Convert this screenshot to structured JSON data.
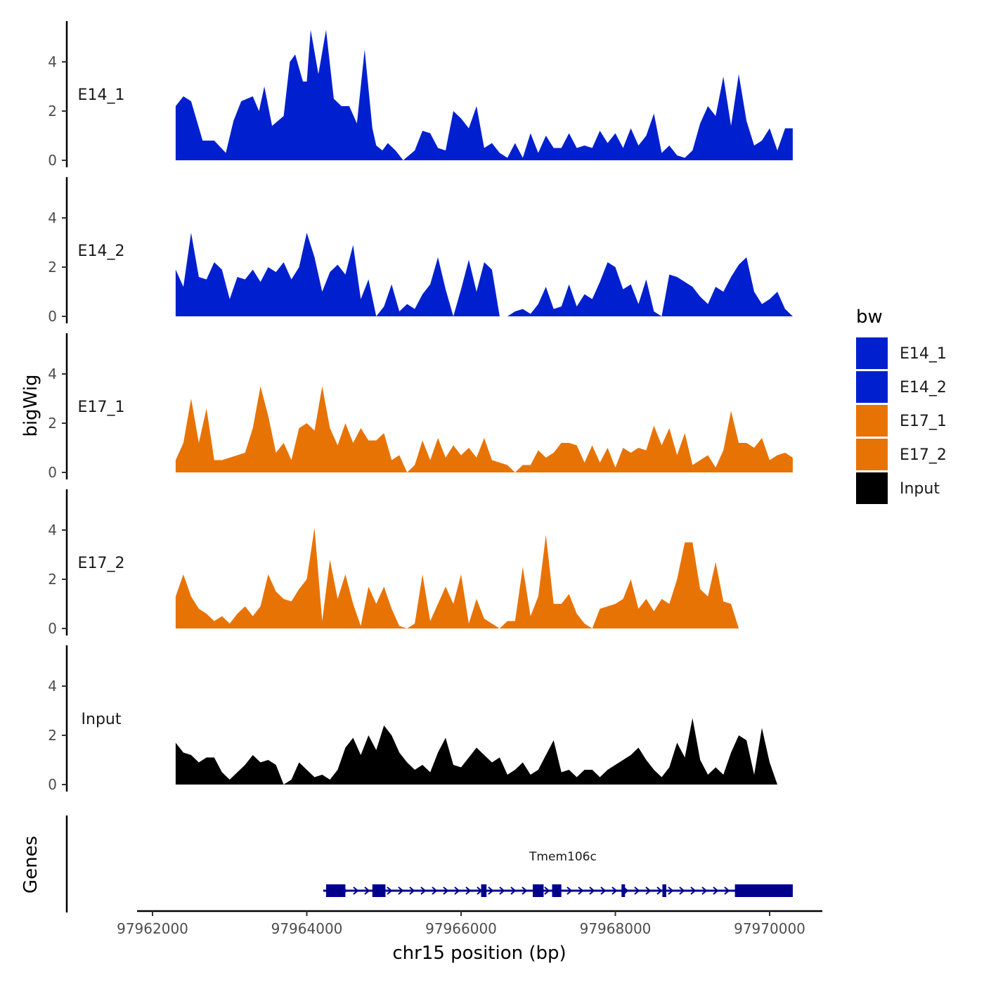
{
  "chart_data": {
    "type": "area",
    "title": "",
    "xlabel": "chr15 position (bp)",
    "ylabel": "bigWig",
    "genes_axis_label": "Genes",
    "xlim": [
      97961800,
      97970700
    ],
    "ylim": [
      0,
      5.5
    ],
    "x_ticks": [
      97962000,
      97964000,
      97966000,
      97968000,
      97970000
    ],
    "x_tick_labels": [
      "97962000",
      "97964000",
      "97966000",
      "97968000",
      "97970000"
    ],
    "y_ticks": [
      0,
      2,
      4
    ],
    "y_tick_labels": [
      "0",
      "2",
      "4"
    ],
    "legend": {
      "title": "bw",
      "entries": [
        {
          "label": "E14_1",
          "color": "#0020CF"
        },
        {
          "label": "E14_2",
          "color": "#0020CF"
        },
        {
          "label": "E17_1",
          "color": "#E87305"
        },
        {
          "label": "E17_2",
          "color": "#E87305"
        },
        {
          "label": "Input",
          "color": "#000000"
        }
      ]
    },
    "series": [
      {
        "name": "E14_1",
        "color": "#0020CF",
        "x": [
          97962300,
          97962400,
          97962500,
          97962650,
          97962800,
          97962950,
          97963050,
          97963150,
          97963300,
          97963380,
          97963450,
          97963550,
          97963700,
          97963780,
          97963850,
          97963950,
          97964000,
          97964050,
          97964150,
          97964250,
          97964350,
          97964450,
          97964550,
          97964650,
          97964750,
          97964850,
          97964900,
          97964980,
          97965050,
          97965150,
          97965250,
          97965400,
          97965500,
          97965600,
          97965700,
          97965800,
          97965900,
          97966000,
          97966100,
          97966200,
          97966300,
          97966400,
          97966500,
          97966600,
          97966700,
          97966800,
          97966900,
          97967000,
          97967100,
          97967200,
          97967300,
          97967400,
          97967500,
          97967600,
          97967700,
          97967800,
          97967900,
          97968000,
          97968100,
          97968200,
          97968300,
          97968400,
          97968500,
          97968600,
          97968700,
          97968800,
          97968900,
          97969000,
          97969100,
          97969200,
          97969300,
          97969400,
          97969500,
          97969600,
          97969700,
          97969800,
          97969900,
          97970000,
          97970100,
          97970200,
          97970300
        ],
        "values": [
          2.2,
          2.6,
          2.4,
          0.8,
          0.8,
          0.3,
          1.6,
          2.4,
          2.6,
          2.0,
          3.0,
          1.4,
          1.8,
          4.0,
          4.3,
          3.2,
          3.2,
          5.3,
          3.5,
          5.3,
          2.5,
          2.2,
          2.2,
          1.5,
          4.5,
          1.3,
          0.6,
          0.4,
          0.7,
          0.4,
          0.0,
          0.4,
          1.2,
          1.1,
          0.5,
          0.4,
          2.0,
          1.7,
          1.3,
          2.2,
          0.5,
          0.7,
          0.3,
          0.1,
          0.7,
          0.1,
          1.1,
          0.3,
          1.0,
          0.5,
          0.5,
          1.1,
          0.5,
          0.6,
          0.5,
          1.2,
          0.7,
          1.1,
          0.5,
          1.3,
          0.6,
          1.0,
          1.9,
          0.3,
          0.6,
          0.2,
          0.1,
          0.4,
          1.5,
          2.2,
          1.8,
          3.4,
          1.4,
          3.5,
          1.6,
          0.6,
          0.8,
          1.3,
          0.4,
          1.3,
          1.3
        ]
      },
      {
        "name": "E14_2",
        "color": "#0020CF",
        "x": [
          97962300,
          97962400,
          97962500,
          97962600,
          97962700,
          97962800,
          97962900,
          97963000,
          97963100,
          97963200,
          97963300,
          97963400,
          97963500,
          97963600,
          97963700,
          97963800,
          97963900,
          97964000,
          97964100,
          97964200,
          97964300,
          97964400,
          97964500,
          97964600,
          97964700,
          97964800,
          97964900,
          97965000,
          97965100,
          97965200,
          97965300,
          97965400,
          97965500,
          97965600,
          97965700,
          97965800,
          97965900,
          97966000,
          97966100,
          97966200,
          97966300,
          97966400,
          97966500,
          97966600,
          97966700,
          97966800,
          97966900,
          97967000,
          97967100,
          97967200,
          97967300,
          97967400,
          97967500,
          97967600,
          97967700,
          97967800,
          97967900,
          97968000,
          97968100,
          97968200,
          97968300,
          97968400,
          97968500,
          97968600,
          97968700,
          97968800,
          97968900,
          97969000,
          97969100,
          97969200,
          97969300,
          97969400,
          97969500,
          97969600,
          97969700,
          97969800,
          97969900,
          97970000,
          97970100,
          97970200,
          97970300
        ],
        "values": [
          1.9,
          1.2,
          3.4,
          1.6,
          1.5,
          2.2,
          1.9,
          0.7,
          1.6,
          1.5,
          1.9,
          1.4,
          2.0,
          1.8,
          2.2,
          1.5,
          2.0,
          3.4,
          2.4,
          1.0,
          1.8,
          2.1,
          1.7,
          2.9,
          0.7,
          1.5,
          0.0,
          0.4,
          1.3,
          0.2,
          0.5,
          0.3,
          0.9,
          1.3,
          2.4,
          1.1,
          0.0,
          1.1,
          2.3,
          1.0,
          2.2,
          1.9,
          0.0,
          0.0,
          0.2,
          0.3,
          0.1,
          0.5,
          1.2,
          0.3,
          0.4,
          1.3,
          0.4,
          0.9,
          0.7,
          1.4,
          2.2,
          2.0,
          1.1,
          1.3,
          0.5,
          1.5,
          0.2,
          0.0,
          1.7,
          1.6,
          1.4,
          1.2,
          0.8,
          0.5,
          1.2,
          1.0,
          1.6,
          2.1,
          2.4,
          1.0,
          0.5,
          0.7,
          1.0,
          0.3,
          0.0
        ]
      },
      {
        "name": "E17_1",
        "color": "#E87305",
        "x": [
          97962300,
          97962400,
          97962500,
          97962600,
          97962700,
          97962800,
          97962900,
          97963000,
          97963100,
          97963200,
          97963300,
          97963400,
          97963500,
          97963600,
          97963700,
          97963800,
          97963900,
          97964000,
          97964100,
          97964200,
          97964300,
          97964400,
          97964500,
          97964600,
          97964700,
          97964800,
          97964900,
          97965000,
          97965100,
          97965200,
          97965300,
          97965400,
          97965500,
          97965600,
          97965700,
          97965800,
          97965900,
          97966000,
          97966100,
          97966200,
          97966300,
          97966400,
          97966500,
          97966600,
          97966700,
          97966800,
          97966900,
          97967000,
          97967100,
          97967200,
          97967300,
          97967400,
          97967500,
          97967600,
          97967700,
          97967800,
          97967900,
          97968000,
          97968100,
          97968200,
          97968300,
          97968400,
          97968500,
          97968600,
          97968700,
          97968800,
          97968900,
          97969000,
          97969100,
          97969200,
          97969300,
          97969400,
          97969500,
          97969600,
          97969700,
          97969800,
          97969900,
          97970000,
          97970100,
          97970200,
          97970300
        ],
        "values": [
          0.5,
          1.2,
          3.0,
          1.2,
          2.6,
          0.5,
          0.5,
          0.6,
          0.7,
          0.8,
          1.8,
          3.5,
          2.3,
          0.8,
          1.2,
          0.5,
          1.8,
          2.0,
          1.7,
          3.5,
          1.8,
          1.1,
          2.0,
          1.2,
          1.8,
          1.3,
          1.3,
          1.6,
          0.5,
          0.7,
          0.0,
          0.3,
          1.3,
          0.5,
          1.4,
          0.6,
          1.1,
          0.7,
          1.0,
          0.6,
          1.4,
          0.5,
          0.4,
          0.3,
          0.0,
          0.3,
          0.3,
          0.9,
          0.6,
          0.8,
          1.2,
          1.2,
          1.1,
          0.4,
          1.1,
          0.4,
          1.0,
          0.2,
          1.0,
          0.8,
          1.0,
          0.9,
          1.9,
          1.1,
          1.8,
          0.7,
          1.6,
          0.3,
          0.5,
          0.7,
          0.2,
          0.9,
          2.5,
          1.2,
          1.2,
          1.0,
          1.4,
          0.5,
          0.7,
          0.8,
          0.6
        ]
      },
      {
        "name": "E17_2",
        "color": "#E87305",
        "x": [
          97962300,
          97962400,
          97962500,
          97962600,
          97962700,
          97962800,
          97962900,
          97963000,
          97963100,
          97963200,
          97963300,
          97963400,
          97963500,
          97963600,
          97963700,
          97963800,
          97963900,
          97964000,
          97964100,
          97964200,
          97964300,
          97964400,
          97964500,
          97964600,
          97964700,
          97964800,
          97964900,
          97965000,
          97965100,
          97965200,
          97965300,
          97965400,
          97965500,
          97965600,
          97965700,
          97965800,
          97965900,
          97966000,
          97966100,
          97966200,
          97966300,
          97966400,
          97966500,
          97966600,
          97966700,
          97966800,
          97966900,
          97967000,
          97967100,
          97967200,
          97967300,
          97967400,
          97967500,
          97967600,
          97967700,
          97967800,
          97967900,
          97968000,
          97968100,
          97968200,
          97968300,
          97968400,
          97968500,
          97968600,
          97968700,
          97968800,
          97968900,
          97969000,
          97969100,
          97969200,
          97969300,
          97969400,
          97969500,
          97969600,
          97969700,
          97969800,
          97969900,
          97970000,
          97970100,
          97970200,
          97970300
        ],
        "values": [
          1.3,
          2.2,
          1.3,
          0.8,
          0.6,
          0.3,
          0.5,
          0.2,
          0.6,
          0.9,
          0.5,
          0.9,
          2.2,
          1.5,
          1.2,
          1.1,
          1.6,
          2.0,
          4.1,
          0.3,
          2.8,
          1.2,
          2.2,
          1.0,
          0.1,
          1.7,
          1.0,
          1.7,
          0.8,
          0.1,
          0.0,
          0.2,
          2.2,
          0.3,
          1.0,
          1.7,
          1.0,
          2.2,
          0.2,
          1.2,
          0.4,
          0.2,
          0.0,
          0.3,
          0.3,
          2.5,
          0.5,
          1.3,
          3.8,
          1.0,
          1.0,
          1.4,
          0.6,
          0.2,
          0.0,
          0.8,
          0.9,
          1.0,
          1.2,
          2.0,
          0.8,
          1.2,
          0.7,
          1.2,
          1.0,
          2.0,
          3.5,
          3.5,
          1.6,
          1.3,
          2.7,
          1.1,
          1.0,
          0.0,
          0.0,
          0.0,
          0.0,
          0.0,
          0.0,
          0.0,
          0.0
        ]
      },
      {
        "name": "Input",
        "color": "#000000",
        "x": [
          97962300,
          97962400,
          97962500,
          97962600,
          97962700,
          97962800,
          97962900,
          97963000,
          97963100,
          97963200,
          97963300,
          97963400,
          97963500,
          97963600,
          97963700,
          97963800,
          97963900,
          97964000,
          97964100,
          97964200,
          97964300,
          97964400,
          97964500,
          97964600,
          97964700,
          97964800,
          97964900,
          97965000,
          97965100,
          97965200,
          97965300,
          97965400,
          97965500,
          97965600,
          97965700,
          97965800,
          97965900,
          97966000,
          97966100,
          97966200,
          97966300,
          97966400,
          97966500,
          97966600,
          97966700,
          97966800,
          97966900,
          97967000,
          97967100,
          97967200,
          97967300,
          97967400,
          97967500,
          97967600,
          97967700,
          97967800,
          97967900,
          97968000,
          97968100,
          97968200,
          97968300,
          97968400,
          97968500,
          97968600,
          97968700,
          97968800,
          97968900,
          97969000,
          97969100,
          97969200,
          97969300,
          97969400,
          97969500,
          97969600,
          97969700,
          97969800,
          97969900,
          97970000,
          97970100,
          97970200,
          97970300
        ],
        "values": [
          1.7,
          1.3,
          1.2,
          0.9,
          1.1,
          1.1,
          0.5,
          0.2,
          0.5,
          0.8,
          1.2,
          0.9,
          1.0,
          0.8,
          0.0,
          0.2,
          0.9,
          0.6,
          0.3,
          0.4,
          0.2,
          0.6,
          1.5,
          1.9,
          1.2,
          2.0,
          1.4,
          2.4,
          2.0,
          1.3,
          0.9,
          0.6,
          0.8,
          0.5,
          1.3,
          1.9,
          0.8,
          0.7,
          1.1,
          1.5,
          1.2,
          0.9,
          1.1,
          0.4,
          0.6,
          0.9,
          0.4,
          0.6,
          1.2,
          1.8,
          0.5,
          0.6,
          0.3,
          0.6,
          0.6,
          0.3,
          0.6,
          0.8,
          1.0,
          1.2,
          1.5,
          1.0,
          0.6,
          0.3,
          0.7,
          1.7,
          1.1,
          2.7,
          1.0,
          0.4,
          0.7,
          0.4,
          1.3,
          2.0,
          1.8,
          0.4,
          2.3,
          0.9,
          0.0,
          0.0,
          0.0
        ]
      }
    ],
    "genes": [
      {
        "name": "Tmem106c",
        "color": "#00008B",
        "start": 97964250,
        "end": 97970300,
        "strand": "+",
        "exons": [
          [
            97964250,
            97964500
          ],
          [
            97964850,
            97965020
          ],
          [
            97966260,
            97966330
          ],
          [
            97966930,
            97967070
          ],
          [
            97967180,
            97967300
          ],
          [
            97968080,
            97968120
          ],
          [
            97968610,
            97968660
          ],
          [
            97969550,
            97970300
          ]
        ]
      }
    ]
  }
}
